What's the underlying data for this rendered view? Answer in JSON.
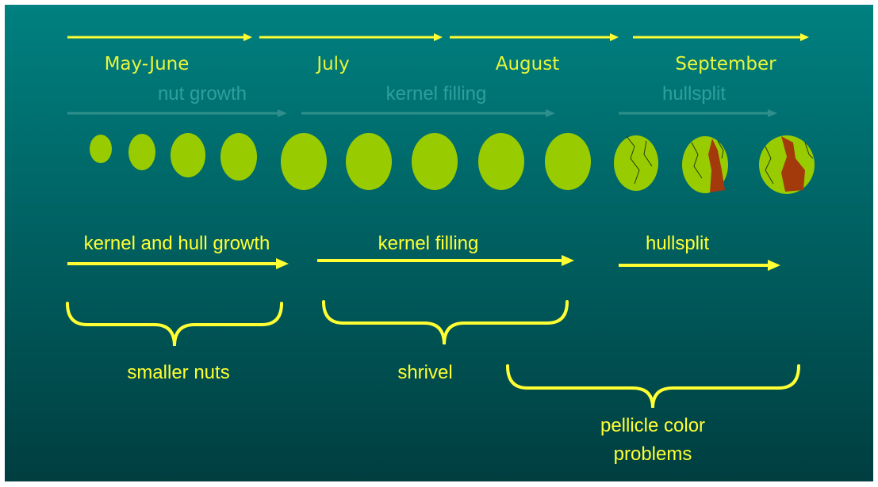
{
  "months": [
    "May-June",
    "July",
    "August",
    "September"
  ],
  "faint_phases": [
    "nut growth",
    "kernel filling",
    "hullsplit"
  ],
  "phases": [
    "kernel and hull growth",
    "kernel filling",
    "hullsplit"
  ],
  "outcomes": [
    {
      "lines": [
        "smaller nuts"
      ]
    },
    {
      "lines": [
        "shrivel"
      ]
    },
    {
      "lines": [
        "pellicle color",
        "problems"
      ]
    }
  ]
}
